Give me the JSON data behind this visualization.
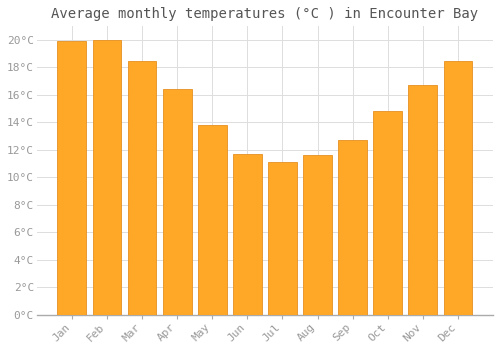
{
  "title": "Average monthly temperatures (°C ) in Encounter Bay",
  "months": [
    "Jan",
    "Feb",
    "Mar",
    "Apr",
    "May",
    "Jun",
    "Jul",
    "Aug",
    "Sep",
    "Oct",
    "Nov",
    "Dec"
  ],
  "values": [
    19.9,
    20.0,
    18.5,
    16.4,
    13.8,
    11.7,
    11.1,
    11.6,
    12.7,
    14.8,
    16.7,
    18.5
  ],
  "bar_color": "#FFA726",
  "bar_edge_color": "#E69020",
  "background_color": "#FFFFFF",
  "plot_bg_color": "#FFFFFF",
  "grid_color": "#DDDDDD",
  "ylim": [
    0,
    21
  ],
  "yticks": [
    0,
    2,
    4,
    6,
    8,
    10,
    12,
    14,
    16,
    18,
    20
  ],
  "ytick_labels": [
    "0°C",
    "2°C",
    "4°C",
    "6°C",
    "8°C",
    "10°C",
    "12°C",
    "14°C",
    "16°C",
    "18°C",
    "20°C"
  ],
  "title_fontsize": 10,
  "tick_fontsize": 8,
  "tick_color": "#999999",
  "title_color": "#555555",
  "bar_width": 0.82,
  "figsize": [
    5.0,
    3.5
  ],
  "dpi": 100
}
